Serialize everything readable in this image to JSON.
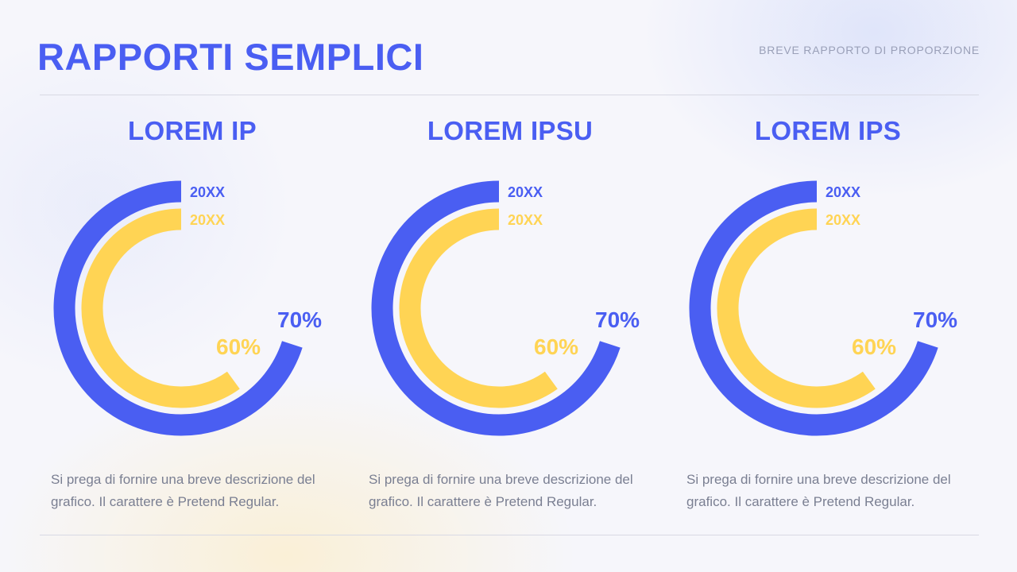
{
  "header": {
    "title": "RAPPORTI SEMPLICI",
    "subtitle": "BREVE RAPPORTO DI PROPORZIONE"
  },
  "colors": {
    "accent_blue": "#4a5ef2",
    "accent_yellow": "#ffd454",
    "text_muted": "#7a7f92"
  },
  "panels": [
    {
      "title": "LOREM IP",
      "description": "Si prega di fornire una breve descrizione del grafico. Il carattere è Pretend Regular."
    },
    {
      "title": "LOREM IPSU",
      "description": "Si prega di fornire una breve descrizione del grafico. Il carattere è Pretend Regular."
    },
    {
      "title": "LOREM IPS",
      "description": "Si prega di fornire una breve descrizione del grafico. Il carattere è Pretend Regular."
    }
  ],
  "chart_data": [
    {
      "type": "radial-bar",
      "categories": [
        "20XX",
        "20XX"
      ],
      "series": [
        {
          "name": "20XX",
          "value": 70,
          "label": "70%",
          "color": "#4a5ef2"
        },
        {
          "name": "20XX",
          "value": 60,
          "label": "60%",
          "color": "#ffd454"
        }
      ]
    },
    {
      "type": "radial-bar",
      "categories": [
        "20XX",
        "20XX"
      ],
      "series": [
        {
          "name": "20XX",
          "value": 70,
          "label": "70%",
          "color": "#4a5ef2"
        },
        {
          "name": "20XX",
          "value": 60,
          "label": "60%",
          "color": "#ffd454"
        }
      ]
    },
    {
      "type": "radial-bar",
      "categories": [
        "20XX",
        "20XX"
      ],
      "series": [
        {
          "name": "20XX",
          "value": 70,
          "label": "70%",
          "color": "#4a5ef2"
        },
        {
          "name": "20XX",
          "value": 60,
          "label": "60%",
          "color": "#ffd454"
        }
      ]
    }
  ]
}
